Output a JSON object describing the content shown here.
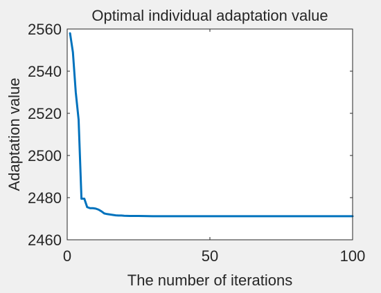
{
  "chart_data": {
    "type": "line",
    "title": "Optimal individual adaptation value",
    "xlabel": "The number of iterations",
    "ylabel": "Adaptation value",
    "xlim": [
      0,
      100
    ],
    "ylim": [
      2460,
      2560
    ],
    "xticks": [
      0,
      50,
      100
    ],
    "yticks": [
      2460,
      2480,
      2500,
      2520,
      2540,
      2560
    ],
    "grid": false,
    "colors": {
      "line": "#0072bd",
      "axes": "#262626",
      "plot_bg": "#ffffff",
      "figure_bg": "#f0f0f0"
    },
    "series": [
      {
        "x": [
          1,
          2,
          3,
          4,
          5,
          6,
          7,
          8,
          9,
          10,
          11,
          12,
          13,
          14,
          15,
          16,
          17,
          18,
          19,
          20,
          22,
          25,
          30,
          40,
          50,
          60,
          70,
          80,
          90,
          100
        ],
        "y": [
          2558,
          2549,
          2530,
          2517,
          2479.5,
          2479.5,
          2475.5,
          2475,
          2475,
          2474.8,
          2474.3,
          2473.5,
          2472.5,
          2472.2,
          2472,
          2471.8,
          2471.6,
          2471.5,
          2471.5,
          2471.4,
          2471.3,
          2471.3,
          2471.2,
          2471.2,
          2471.2,
          2471.2,
          2471.2,
          2471.2,
          2471.2,
          2471.2
        ]
      }
    ]
  }
}
